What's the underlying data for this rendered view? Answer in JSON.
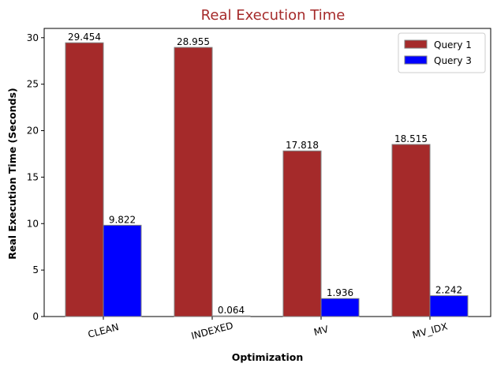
{
  "chart_data": {
    "type": "bar",
    "title": "Real Execution Time",
    "title_color": "#a52a2a",
    "xlabel": "Optimization",
    "ylabel": "Real Execution Time (Seconds)",
    "categories": [
      "CLEAN",
      "INDEXED",
      "MV",
      "MV_IDX"
    ],
    "series": [
      {
        "name": "Query 1",
        "color": "#a52a2a",
        "values": [
          29.454,
          28.955,
          17.818,
          18.515
        ],
        "labels": [
          "29.454",
          "28.955",
          "17.818",
          "18.515"
        ]
      },
      {
        "name": "Query 3",
        "color": "#0000ff",
        "values": [
          9.822,
          0.064,
          1.936,
          2.242
        ],
        "labels": [
          "9.822",
          "0.064",
          "1.936",
          "2.242"
        ]
      }
    ],
    "ylim": [
      0,
      31
    ],
    "yticks": [
      0,
      5,
      10,
      15,
      20,
      25,
      30
    ],
    "ytick_labels": [
      "0",
      "5",
      "10",
      "15",
      "20",
      "25",
      "30"
    ],
    "xtick_rotation_deg": 15,
    "grid": false,
    "legend_position": "top-right",
    "bar_edge_color": "#808080"
  }
}
